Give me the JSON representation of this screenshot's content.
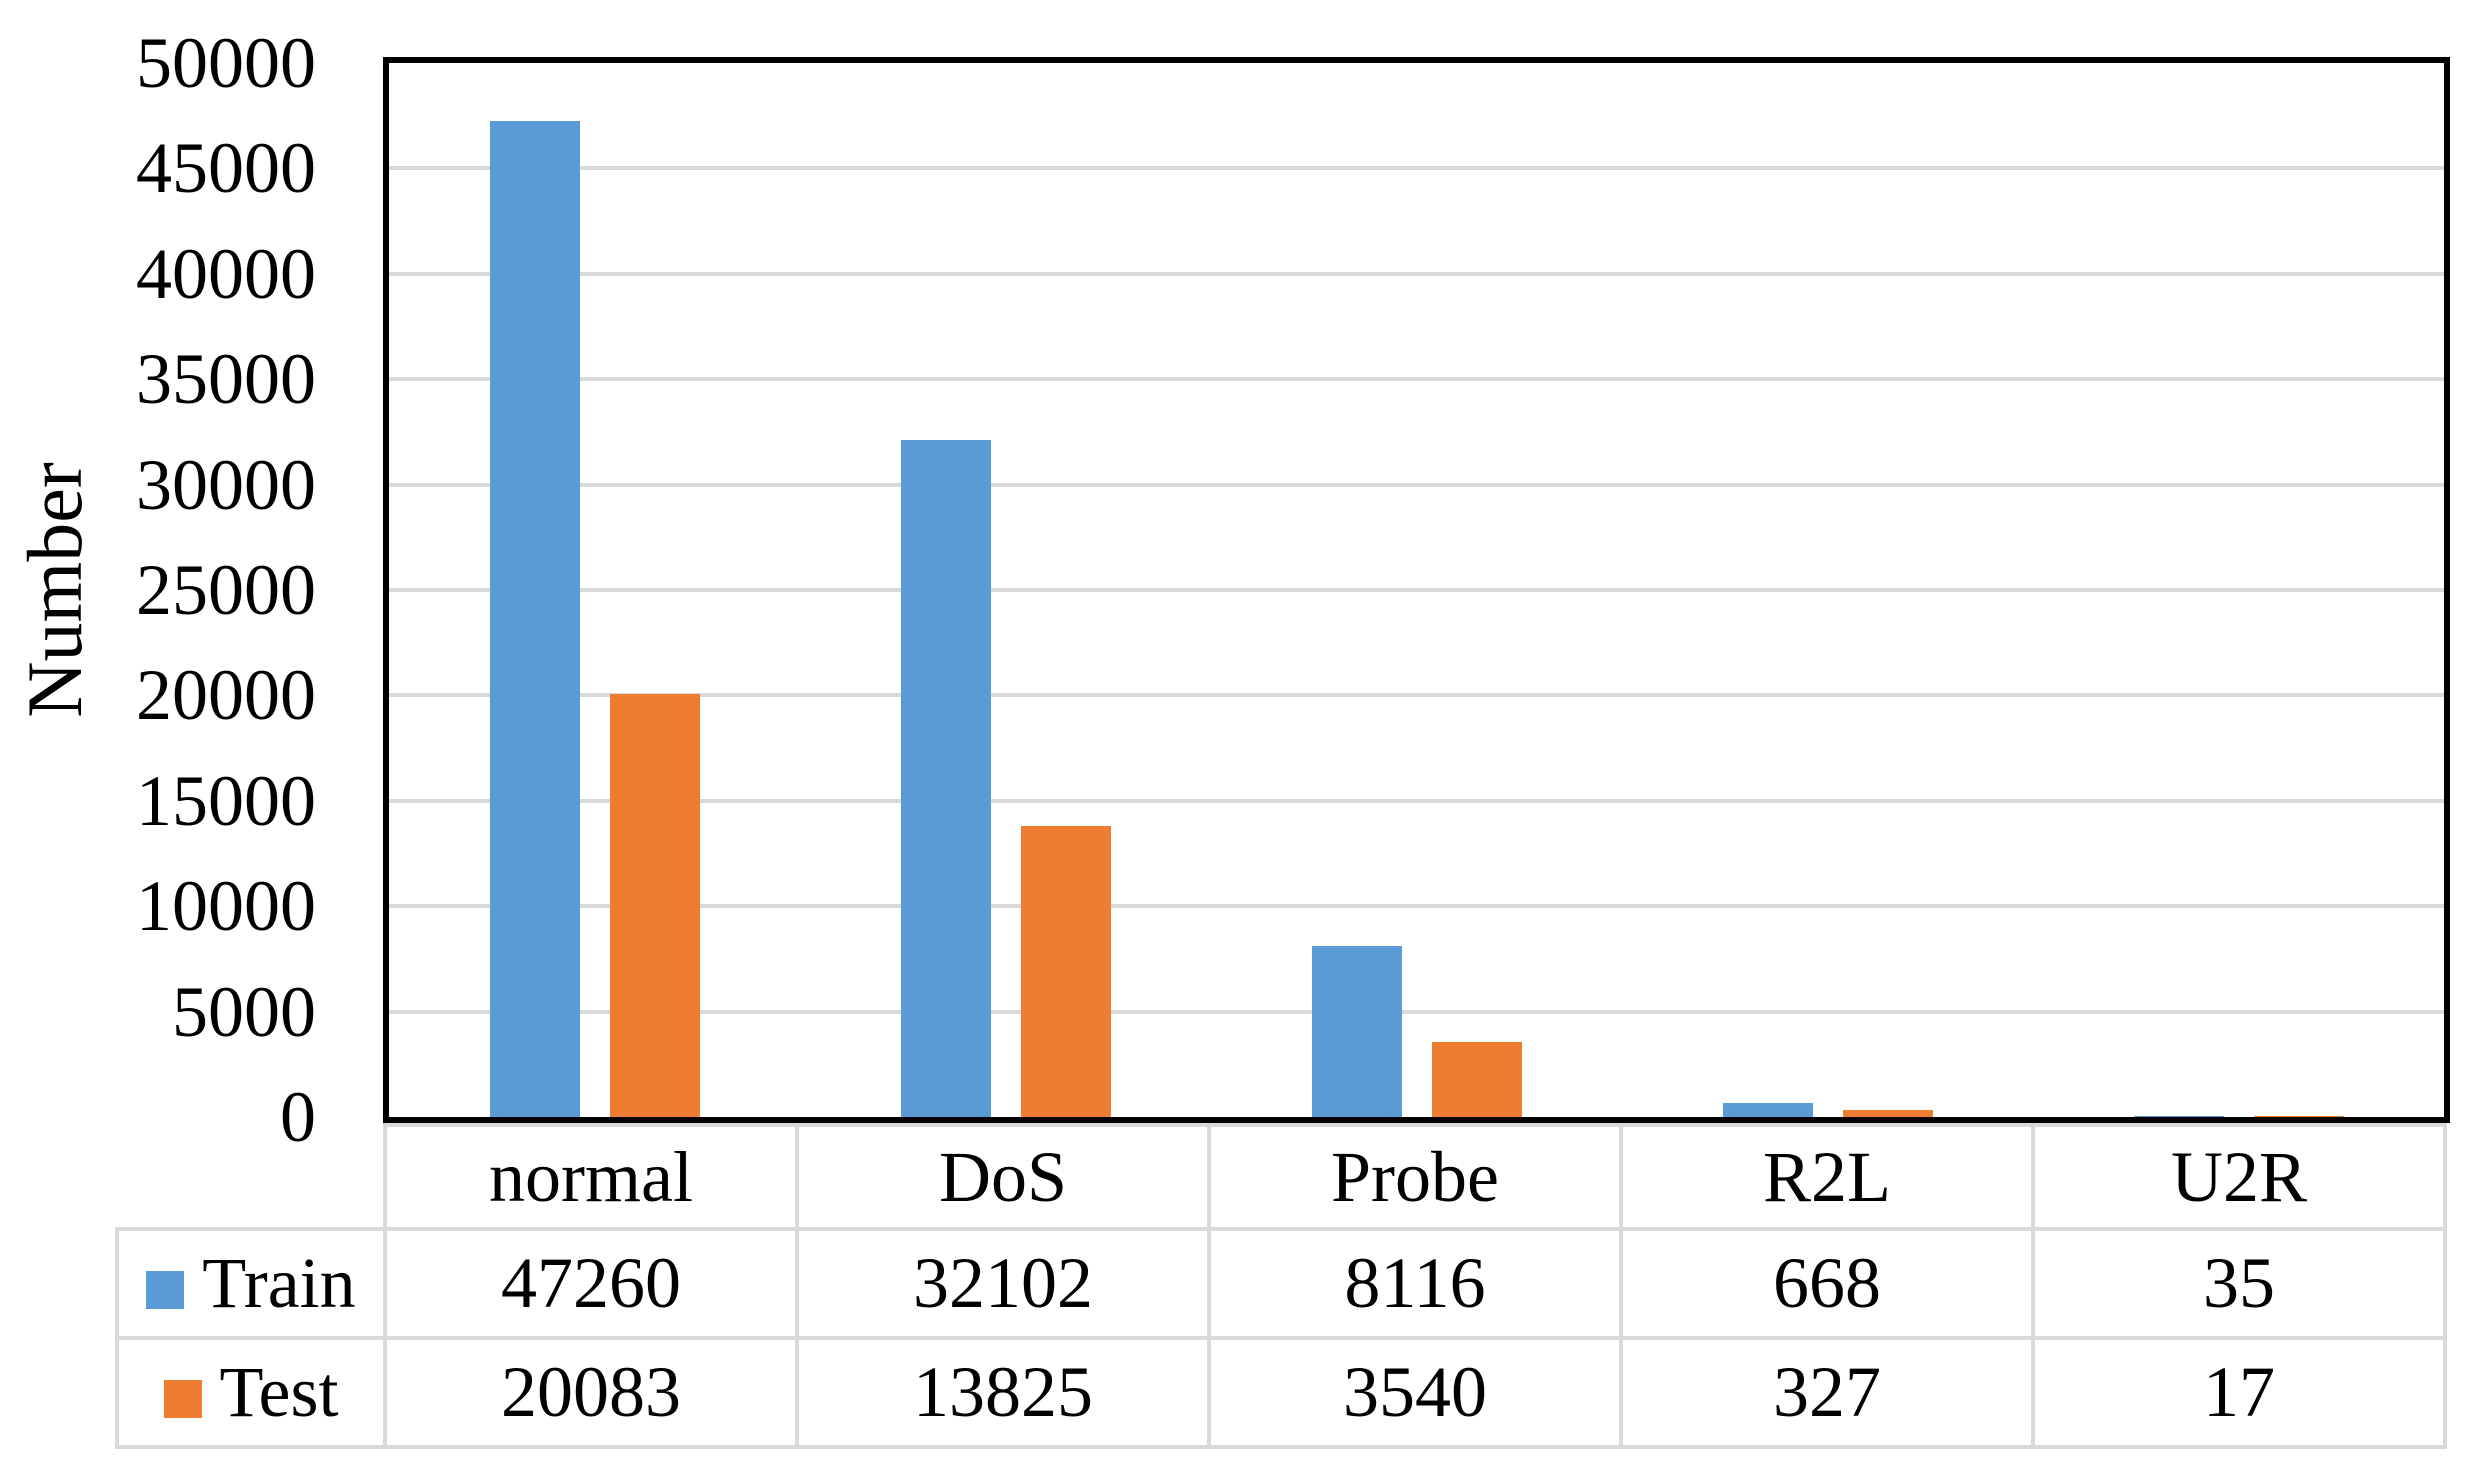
{
  "figure": {
    "background": "#ffffff",
    "text_color": "#000000"
  },
  "chart_data": {
    "type": "bar",
    "title": "",
    "xlabel": "",
    "ylabel": "Number",
    "categories": [
      "normal",
      "DoS",
      "Probe",
      "R2L",
      "U2R"
    ],
    "series": [
      {
        "name": "Train",
        "color": "#5B9BD5",
        "values": [
          47260,
          32102,
          8116,
          668,
          35
        ]
      },
      {
        "name": "Test",
        "color": "#ED7D31",
        "values": [
          20083,
          13825,
          3540,
          327,
          17
        ]
      }
    ],
    "ylim": [
      0,
      50000
    ],
    "ytick_step": 5000,
    "ytick_labels": [
      "50000",
      "45000",
      "40000",
      "35000",
      "30000",
      "25000",
      "20000",
      "15000",
      "10000",
      "5000",
      "0"
    ],
    "grid": true,
    "gridline_color": "#D9D9D9",
    "plot_border_color": "#000000",
    "legend_position": "bottom-table-left",
    "data_table": {
      "columns": [
        "normal",
        "DoS",
        "Probe",
        "R2L",
        "U2R"
      ],
      "rows": [
        {
          "label": "Train",
          "swatch_color": "#5B9BD5",
          "values": [
            "47260",
            "32102",
            "8116",
            "668",
            "35"
          ]
        },
        {
          "label": "Test",
          "swatch_color": "#ED7D31",
          "values": [
            "20083",
            "13825",
            "3540",
            "327",
            "17"
          ]
        }
      ]
    }
  }
}
